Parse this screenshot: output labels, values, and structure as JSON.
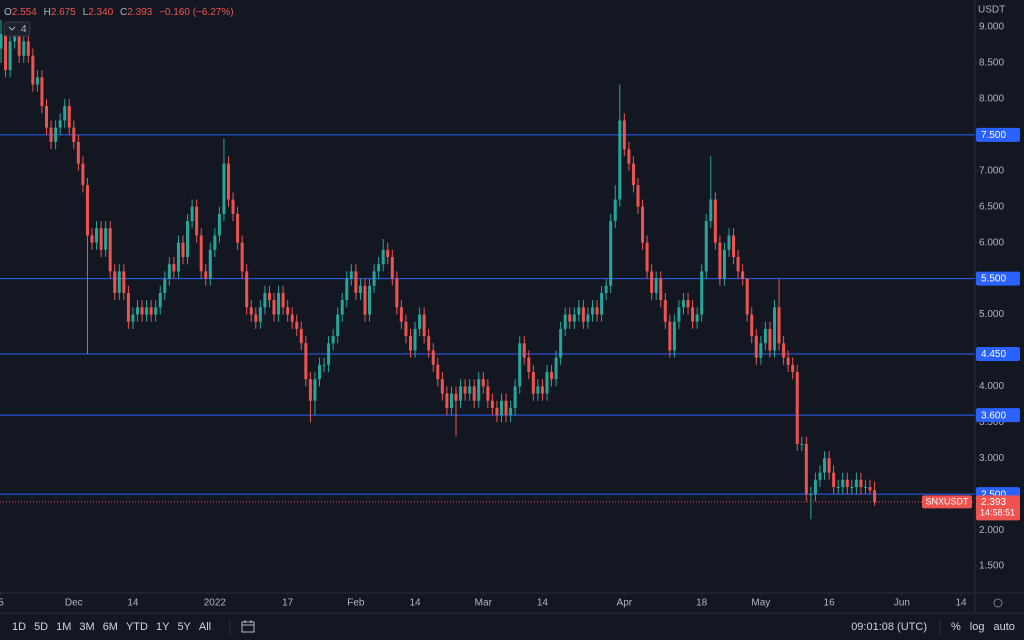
{
  "header": {
    "open_label": "O",
    "open": "2.554",
    "high_label": "H",
    "high": "2.675",
    "low_label": "L",
    "low": "2.340",
    "close_label": "C",
    "close": "2.393",
    "change": "−0.160 (−6.27%)",
    "indicators": "4"
  },
  "chart_data": {
    "type": "candlestick",
    "currency": "USDT",
    "symbol": "SNXUSDT",
    "countdown": "14:58:51",
    "up_color": "#26a69a",
    "down_color": "#ef5350",
    "hline_color": "#2962ff",
    "grid": false,
    "open": [
      8.7,
      8.9,
      8.4,
      8.8,
      8.9,
      8.6,
      8.8,
      8.6,
      8.2,
      8.3,
      7.9,
      7.6,
      7.4,
      7.6,
      7.7,
      7.9,
      7.6,
      7.4,
      7.1,
      6.8,
      6.1,
      6.0,
      6.2,
      5.9,
      6.2,
      5.6,
      5.3,
      5.6,
      5.3,
      4.9,
      5.0,
      5.1,
      5.0,
      5.1,
      5.0,
      5.1,
      5.3,
      5.5,
      5.7,
      5.6,
      6.0,
      5.8,
      6.3,
      6.5,
      6.1,
      5.6,
      5.5,
      5.9,
      6.1,
      6.4,
      7.1,
      6.6,
      6.4,
      6.0,
      5.6,
      5.1,
      5.0,
      4.9,
      5.1,
      5.3,
      5.2,
      5.0,
      5.3,
      5.1,
      5.0,
      4.9,
      4.8,
      4.6,
      4.1,
      3.8,
      4.1,
      4.3,
      4.3,
      4.6,
      4.7,
      5.0,
      5.2,
      5.5,
      5.6,
      5.3,
      5.4,
      5.0,
      5.4,
      5.6,
      5.7,
      5.9,
      5.8,
      5.5,
      5.1,
      4.9,
      4.7,
      4.5,
      4.8,
      5.0,
      4.7,
      4.5,
      4.3,
      4.1,
      3.9,
      3.7,
      3.9,
      3.8,
      4.0,
      3.9,
      4.0,
      3.8,
      4.1,
      4.0,
      3.8,
      3.7,
      3.6,
      3.8,
      3.6,
      3.7,
      4.0,
      4.6,
      4.4,
      4.2,
      3.9,
      4.0,
      3.9,
      4.2,
      4.1,
      4.4,
      4.8,
      5.0,
      4.9,
      5.0,
      5.1,
      4.9,
      5.0,
      5.1,
      5.0,
      5.3,
      5.4,
      6.3,
      6.6,
      7.7,
      7.3,
      7.1,
      6.8,
      6.5,
      6.0,
      5.6,
      5.3,
      5.5,
      5.2,
      4.9,
      4.5,
      4.9,
      5.1,
      5.2,
      5.1,
      4.9,
      5.0,
      5.6,
      6.3,
      6.6,
      6.0,
      5.5,
      5.9,
      6.1,
      5.8,
      5.6,
      5.5,
      5.0,
      4.7,
      4.4,
      4.6,
      4.8,
      4.5,
      5.1,
      4.6,
      4.4,
      4.3,
      4.2,
      3.2,
      3.2,
      2.5,
      2.5,
      2.7,
      2.8,
      3.0,
      2.8,
      2.6,
      2.6,
      2.7,
      2.6,
      2.6,
      2.7,
      2.6,
      2.6,
      2.554
    ],
    "high": [
      9.1,
      9.0,
      8.9,
      9.0,
      9.0,
      8.9,
      8.9,
      8.7,
      8.4,
      8.4,
      8.0,
      7.7,
      7.7,
      7.8,
      8.0,
      8.0,
      7.7,
      7.5,
      7.2,
      6.9,
      6.2,
      6.3,
      6.3,
      6.3,
      6.3,
      5.7,
      5.7,
      5.7,
      5.4,
      5.1,
      5.2,
      5.2,
      5.2,
      5.2,
      5.2,
      5.4,
      5.6,
      5.8,
      5.8,
      6.1,
      6.1,
      6.4,
      6.6,
      6.6,
      6.2,
      5.7,
      6.0,
      6.2,
      6.5,
      7.45,
      7.2,
      6.7,
      6.5,
      6.1,
      5.7,
      5.2,
      5.1,
      5.2,
      5.4,
      5.4,
      5.3,
      5.4,
      5.4,
      5.2,
      5.1,
      5.0,
      4.9,
      4.7,
      4.2,
      4.2,
      4.4,
      4.4,
      4.7,
      4.8,
      5.1,
      5.3,
      5.6,
      5.7,
      5.7,
      5.5,
      5.5,
      5.5,
      5.7,
      5.8,
      6.05,
      6.0,
      5.9,
      5.6,
      5.2,
      5.0,
      4.8,
      4.9,
      5.1,
      5.1,
      4.8,
      4.6,
      4.4,
      4.2,
      4.0,
      4.0,
      4.0,
      4.1,
      4.1,
      4.1,
      4.1,
      4.2,
      4.2,
      4.1,
      3.9,
      3.8,
      3.9,
      3.9,
      3.8,
      4.1,
      4.7,
      4.7,
      4.5,
      4.3,
      4.1,
      4.1,
      4.3,
      4.3,
      4.5,
      4.9,
      5.1,
      5.1,
      5.1,
      5.2,
      5.2,
      5.1,
      5.2,
      5.2,
      5.4,
      5.5,
      6.4,
      6.8,
      8.2,
      7.8,
      7.4,
      7.2,
      6.9,
      6.6,
      6.1,
      5.7,
      5.6,
      5.6,
      5.3,
      5.0,
      5.0,
      5.2,
      5.3,
      5.3,
      5.2,
      5.1,
      5.7,
      6.4,
      7.2,
      6.7,
      6.1,
      6.0,
      6.2,
      6.2,
      5.9,
      5.7,
      5.5,
      5.1,
      4.8,
      4.7,
      4.9,
      4.9,
      5.2,
      5.5,
      4.7,
      4.5,
      4.4,
      4.3,
      3.3,
      3.3,
      2.6,
      2.8,
      2.9,
      3.1,
      3.1,
      2.9,
      2.7,
      2.8,
      2.8,
      2.7,
      2.8,
      2.8,
      2.7,
      2.7,
      2.675
    ],
    "low": [
      8.5,
      8.3,
      8.3,
      8.7,
      8.5,
      8.5,
      8.5,
      8.1,
      8.1,
      7.8,
      7.5,
      7.3,
      7.3,
      7.5,
      7.6,
      7.5,
      7.3,
      7.0,
      6.7,
      4.45,
      5.9,
      5.9,
      5.8,
      5.8,
      5.5,
      5.2,
      5.2,
      5.2,
      4.8,
      4.8,
      4.9,
      4.9,
      4.9,
      4.9,
      4.9,
      5.0,
      5.2,
      5.4,
      5.5,
      5.5,
      5.7,
      5.7,
      6.2,
      6.0,
      5.5,
      5.4,
      5.4,
      5.8,
      6.0,
      6.3,
      6.5,
      6.3,
      5.9,
      5.5,
      5.0,
      4.9,
      4.8,
      4.8,
      5.0,
      5.1,
      4.9,
      4.9,
      5.0,
      4.9,
      4.8,
      4.7,
      4.5,
      4.0,
      3.5,
      3.6,
      4.0,
      4.2,
      4.2,
      4.5,
      4.6,
      4.9,
      5.1,
      5.4,
      5.2,
      5.2,
      4.9,
      4.9,
      5.3,
      5.5,
      5.6,
      5.7,
      5.4,
      5.0,
      4.8,
      4.6,
      4.4,
      4.4,
      4.7,
      4.6,
      4.4,
      4.2,
      4.0,
      3.8,
      3.6,
      3.6,
      3.3,
      3.7,
      3.8,
      3.8,
      3.7,
      3.7,
      3.9,
      3.7,
      3.6,
      3.5,
      3.5,
      3.5,
      3.5,
      3.6,
      3.9,
      4.3,
      4.1,
      3.8,
      3.8,
      3.8,
      3.8,
      4.0,
      4.0,
      4.3,
      4.7,
      4.8,
      4.8,
      4.9,
      4.8,
      4.8,
      4.9,
      4.9,
      4.9,
      5.2,
      5.3,
      6.2,
      6.5,
      7.2,
      7.0,
      6.7,
      6.4,
      5.9,
      5.5,
      5.2,
      5.2,
      5.1,
      4.8,
      4.4,
      4.4,
      4.8,
      5.0,
      5.0,
      4.8,
      4.8,
      4.9,
      5.5,
      6.2,
      5.9,
      5.4,
      5.4,
      5.8,
      5.7,
      5.5,
      5.4,
      4.9,
      4.6,
      4.3,
      4.3,
      4.5,
      4.4,
      4.4,
      4.5,
      4.3,
      4.2,
      4.1,
      3.1,
      3.1,
      2.4,
      2.15,
      2.4,
      2.6,
      2.7,
      2.7,
      2.5,
      2.5,
      2.5,
      2.5,
      2.5,
      2.5,
      2.5,
      2.5,
      2.5,
      2.34
    ],
    "close": [
      8.9,
      8.4,
      8.8,
      8.9,
      8.6,
      8.8,
      8.6,
      8.2,
      8.3,
      7.9,
      7.6,
      7.4,
      7.6,
      7.7,
      7.9,
      7.6,
      7.4,
      7.1,
      6.8,
      6.1,
      6.0,
      6.2,
      5.9,
      6.2,
      5.6,
      5.3,
      5.6,
      5.3,
      4.9,
      5.0,
      5.1,
      5.0,
      5.1,
      5.0,
      5.1,
      5.3,
      5.5,
      5.7,
      5.6,
      6.0,
      5.8,
      6.3,
      6.5,
      6.1,
      5.6,
      5.5,
      5.9,
      6.1,
      6.4,
      7.1,
      6.6,
      6.4,
      6.0,
      5.6,
      5.1,
      5.0,
      4.9,
      5.1,
      5.3,
      5.2,
      5.0,
      5.3,
      5.1,
      5.0,
      4.9,
      4.8,
      4.6,
      4.1,
      3.8,
      4.1,
      4.3,
      4.3,
      4.6,
      4.7,
      5.0,
      5.2,
      5.5,
      5.6,
      5.3,
      5.4,
      5.0,
      5.4,
      5.6,
      5.7,
      5.9,
      5.8,
      5.5,
      5.1,
      4.9,
      4.7,
      4.5,
      4.8,
      5.0,
      4.7,
      4.5,
      4.3,
      4.1,
      3.9,
      3.7,
      3.9,
      3.8,
      4.0,
      3.9,
      4.0,
      3.8,
      4.1,
      4.0,
      3.8,
      3.7,
      3.6,
      3.8,
      3.6,
      3.7,
      4.0,
      4.6,
      4.4,
      4.2,
      3.9,
      4.0,
      3.9,
      4.2,
      4.1,
      4.4,
      4.8,
      5.0,
      4.9,
      5.0,
      5.1,
      4.9,
      5.0,
      5.1,
      5.0,
      5.3,
      5.4,
      6.3,
      6.6,
      7.7,
      7.3,
      7.1,
      6.8,
      6.5,
      6.0,
      5.6,
      5.3,
      5.5,
      5.2,
      4.9,
      4.5,
      4.9,
      5.1,
      5.2,
      5.1,
      4.9,
      5.0,
      5.6,
      6.3,
      6.6,
      6.0,
      5.5,
      5.9,
      6.1,
      5.8,
      5.6,
      5.5,
      5.0,
      4.7,
      4.4,
      4.6,
      4.8,
      4.5,
      5.1,
      4.6,
      4.4,
      4.3,
      4.2,
      3.2,
      3.2,
      2.5,
      2.5,
      2.7,
      2.8,
      3.0,
      2.8,
      2.6,
      2.6,
      2.7,
      2.6,
      2.6,
      2.7,
      2.6,
      2.6,
      2.554,
      2.393
    ],
    "xlim": [
      -0.22,
      214.07
    ],
    "xticks": [
      {
        "value": 0,
        "label": "5"
      },
      {
        "value": 16,
        "label": "Dec"
      },
      {
        "value": 29,
        "label": "14"
      },
      {
        "value": 47,
        "label": "2022"
      },
      {
        "value": 63,
        "label": "17"
      },
      {
        "value": 78,
        "label": "Feb"
      },
      {
        "value": 91,
        "label": "14"
      },
      {
        "value": 106,
        "label": "Mar"
      },
      {
        "value": 119,
        "label": "14"
      },
      {
        "value": 137,
        "label": "Apr"
      },
      {
        "value": 154,
        "label": "18"
      },
      {
        "value": 167,
        "label": "May"
      },
      {
        "value": 182,
        "label": "16"
      },
      {
        "value": 198,
        "label": "Jun"
      },
      {
        "value": 211,
        "label": "14"
      }
    ],
    "ylim": [
      1.125,
      9.376
    ],
    "yticks": [
      {
        "value": 1.5,
        "label": "1.500"
      },
      {
        "value": 2,
        "label": "2.000"
      },
      {
        "value": 3,
        "label": "3.000"
      },
      {
        "value": 3.5,
        "label": "3.500"
      },
      {
        "value": 4,
        "label": "4.000"
      },
      {
        "value": 5,
        "label": "5.000"
      },
      {
        "value": 6,
        "label": "6.000"
      },
      {
        "value": 6.5,
        "label": "6.500"
      },
      {
        "value": 7,
        "label": "7.000"
      },
      {
        "value": 8,
        "label": "8.000"
      },
      {
        "value": 8.5,
        "label": "8.500"
      },
      {
        "value": 9,
        "label": "9.000"
      }
    ],
    "hlines": [
      {
        "value": 7.5,
        "label": "7.500"
      },
      {
        "value": 5.5,
        "label": "5.500"
      },
      {
        "value": 4.45,
        "label": "4.450"
      },
      {
        "value": 3.6,
        "label": "3.600"
      },
      {
        "value": 2.5,
        "label": "2.500"
      }
    ],
    "last_price": {
      "value": 2.393,
      "label": "2.393"
    }
  },
  "toolbar": {
    "ranges": [
      "1D",
      "5D",
      "1M",
      "3M",
      "6M",
      "YTD",
      "1Y",
      "5Y",
      "All"
    ],
    "time": "09:01:08 (UTC)",
    "options": [
      "%",
      "log",
      "auto"
    ]
  }
}
